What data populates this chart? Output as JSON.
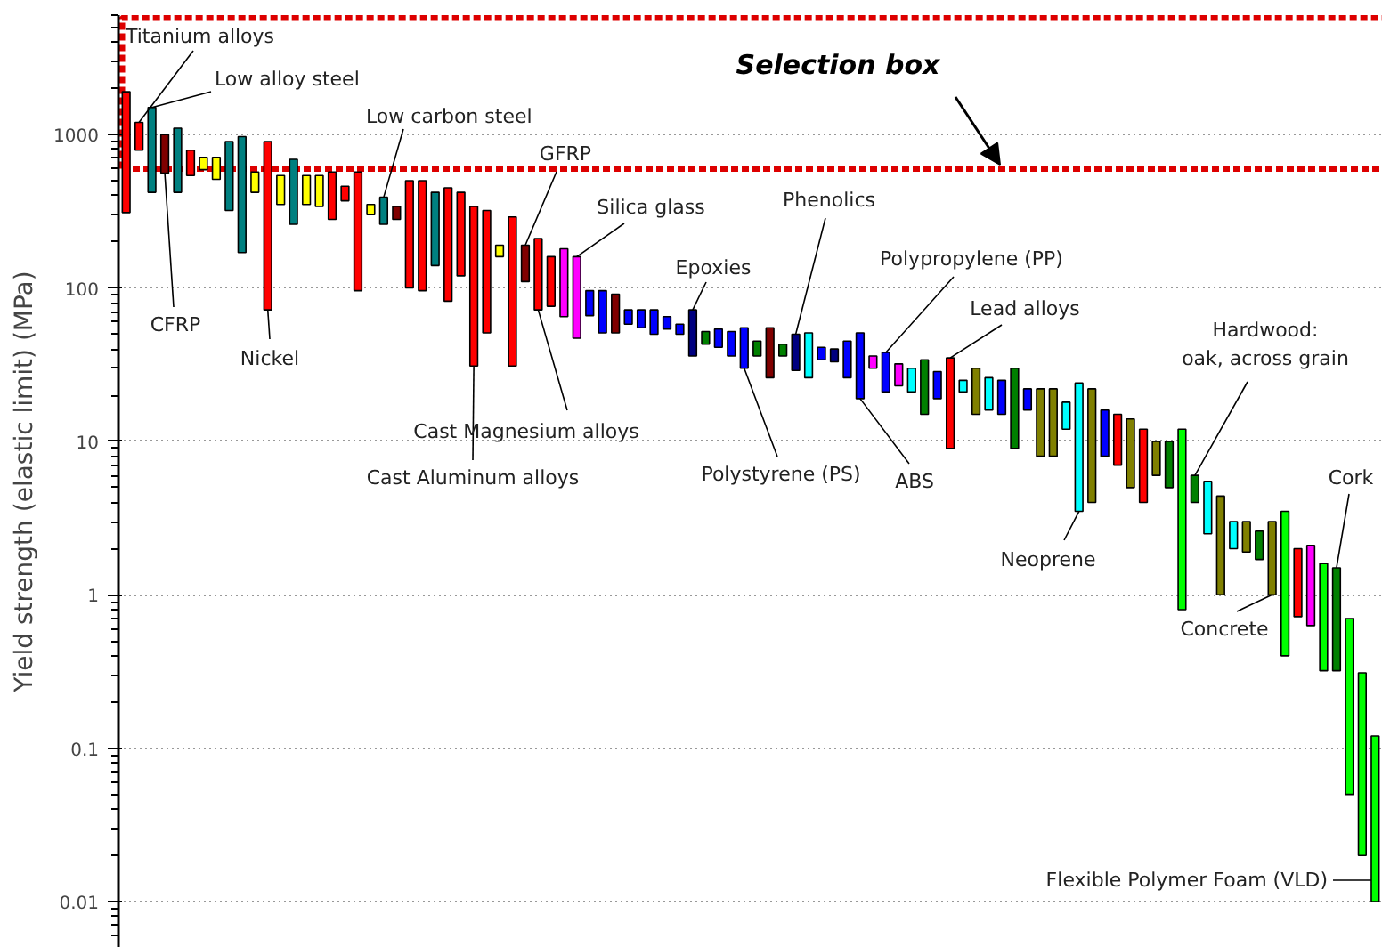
{
  "chart_data": {
    "type": "bar",
    "ylabel": "Yield strength (elastic limit) (MPa)",
    "log": "y",
    "grid": "y",
    "tick_labels": "y",
    "categories": [
      null,
      null,
      null,
      null,
      null,
      null,
      null,
      null,
      null,
      null,
      null,
      null,
      null,
      null,
      null,
      null,
      null,
      null,
      null,
      null,
      null,
      null,
      null,
      null,
      null,
      null,
      null,
      null,
      null,
      null,
      null,
      null,
      null,
      null,
      null,
      null,
      null,
      null,
      null,
      null,
      null,
      null,
      null,
      null,
      null,
      null,
      null,
      null,
      null,
      null,
      null,
      null,
      null,
      null,
      null,
      null,
      null,
      null,
      null,
      null,
      null,
      null,
      null,
      null,
      null,
      null,
      null,
      null,
      null,
      null,
      null,
      null,
      null,
      null,
      null,
      null,
      null,
      null,
      null,
      null,
      null,
      null,
      null,
      null,
      null,
      null,
      null,
      null,
      null,
      null,
      null,
      null,
      null,
      null,
      null,
      null,
      null,
      null
    ],
    "base": [
      310,
      790,
      420,
      560,
      420,
      540,
      590,
      510,
      320,
      170,
      420,
      72,
      350,
      260,
      350,
      340,
      280,
      370,
      96,
      300,
      260,
      280,
      100,
      96,
      140,
      82,
      120,
      31,
      51,
      160,
      31,
      110,
      72,
      76,
      65,
      47,
      66,
      51,
      51,
      58,
      55,
      50,
      54,
      50,
      36,
      43,
      41,
      36,
      30,
      36,
      26,
      36,
      29,
      26,
      34,
      33,
      26,
      19,
      30,
      21,
      23,
      21,
      15,
      19,
      9,
      21,
      15,
      16,
      15,
      9,
      16,
      8,
      8,
      12,
      3.5,
      4,
      8,
      7,
      5,
      4,
      6,
      5,
      0.8,
      4,
      2.5,
      1,
      2,
      1.9,
      1.7,
      1,
      0.4,
      0.72,
      0.63,
      0.32,
      0.32,
      0.05,
      0.02,
      0.01
    ],
    "values": [
      1590,
      410,
      1080,
      440,
      680,
      250,
      120,
      200,
      580,
      800,
      150,
      828,
      190,
      430,
      190,
      200,
      290,
      90,
      474,
      50,
      130,
      60,
      400,
      404,
      280,
      368,
      300,
      309,
      269,
      30,
      259,
      80,
      138,
      84,
      115,
      113,
      30,
      45,
      40,
      14,
      17,
      22,
      11,
      8,
      36,
      9,
      13,
      16,
      25,
      9,
      29,
      7,
      21,
      25,
      7,
      7,
      19,
      32,
      6,
      17,
      9,
      9,
      19,
      9.5,
      26,
      4,
      15,
      10,
      10,
      21,
      6,
      14,
      14,
      6,
      20.5,
      18,
      8,
      8,
      9,
      8,
      4,
      5,
      11.2,
      2,
      3,
      3.4,
      1,
      1.1,
      0.9,
      2,
      3.1,
      1.28,
      1.47,
      1.28,
      1.18,
      0.65,
      0.29,
      0.11
    ],
    "colors": [
      "#ff0000",
      "#ff0000",
      "#008080",
      "#800000",
      "#008080",
      "#ff0000",
      "#ffff00",
      "#ffff00",
      "#008080",
      "#008080",
      "#ffff00",
      "#ff0000",
      "#ffff00",
      "#008080",
      "#ffff00",
      "#ffff00",
      "#ff0000",
      "#ff0000",
      "#ff0000",
      "#ffff00",
      "#008080",
      "#800000",
      "#ff0000",
      "#ff0000",
      "#008080",
      "#ff0000",
      "#ff0000",
      "#ff0000",
      "#ff0000",
      "#ffff00",
      "#ff0000",
      "#800000",
      "#ff0000",
      "#ff0000",
      "#ff00ff",
      "#ff00ff",
      "#0000ff",
      "#0000ff",
      "#800000",
      "#0000ff",
      "#0000ff",
      "#0000ff",
      "#0000ff",
      "#0000ff",
      "#000080",
      "#008000",
      "#0000ff",
      "#0000ff",
      "#0000ff",
      "#008000",
      "#800000",
      "#008000",
      "#000080",
      "#00ffff",
      "#0000ff",
      "#000080",
      "#0000ff",
      "#0000ff",
      "#ff00ff",
      "#0000ff",
      "#ff00ff",
      "#00ffff",
      "#008000",
      "#0000ff",
      "#ff0000",
      "#00ffff",
      "#808000",
      "#00ffff",
      "#0000ff",
      "#008000",
      "#0000ff",
      "#808000",
      "#808000",
      "#00ffff",
      "#00ffff",
      "#808000",
      "#0000ff",
      "#ff0000",
      "#808000",
      "#ff0000",
      "#808000",
      "#008000",
      "#00ff00",
      "#008000",
      "#00ffff",
      "#808000",
      "#00ffff",
      "#808000",
      "#008000",
      "#808000",
      "#00ff00",
      "#ff0000",
      "#ff00ff",
      "#00ff00",
      "#008000",
      "#00ff00",
      "#00ff00",
      "#00ff00"
    ],
    "ylim": [
      0.005,
      6000
    ],
    "yticks": [
      0.01,
      0.1,
      1,
      10,
      100,
      1000
    ],
    "ref_lines": [
      {
        "axis": "y",
        "value": 600,
        "label": "Selection box",
        "color": "#dd0000",
        "line_style": "dashed"
      }
    ],
    "annotations": [
      "Titanium alloys",
      "Low alloy steel",
      "CFRP",
      "Nickel",
      "Low carbon steel",
      "GFRP",
      "Cast Aluminum alloys",
      "Silica glass",
      "Cast Magnesium alloys",
      "Epoxies",
      "Polystyrene (PS)",
      "Phenolics",
      "ABS",
      "Polypropylene (PP)",
      "Lead alloys",
      "Neoprene",
      "Hardwood:\noak, across grain",
      "Concrete",
      "Cork",
      "Flexible Polymer Foam (VLD)"
    ]
  }
}
